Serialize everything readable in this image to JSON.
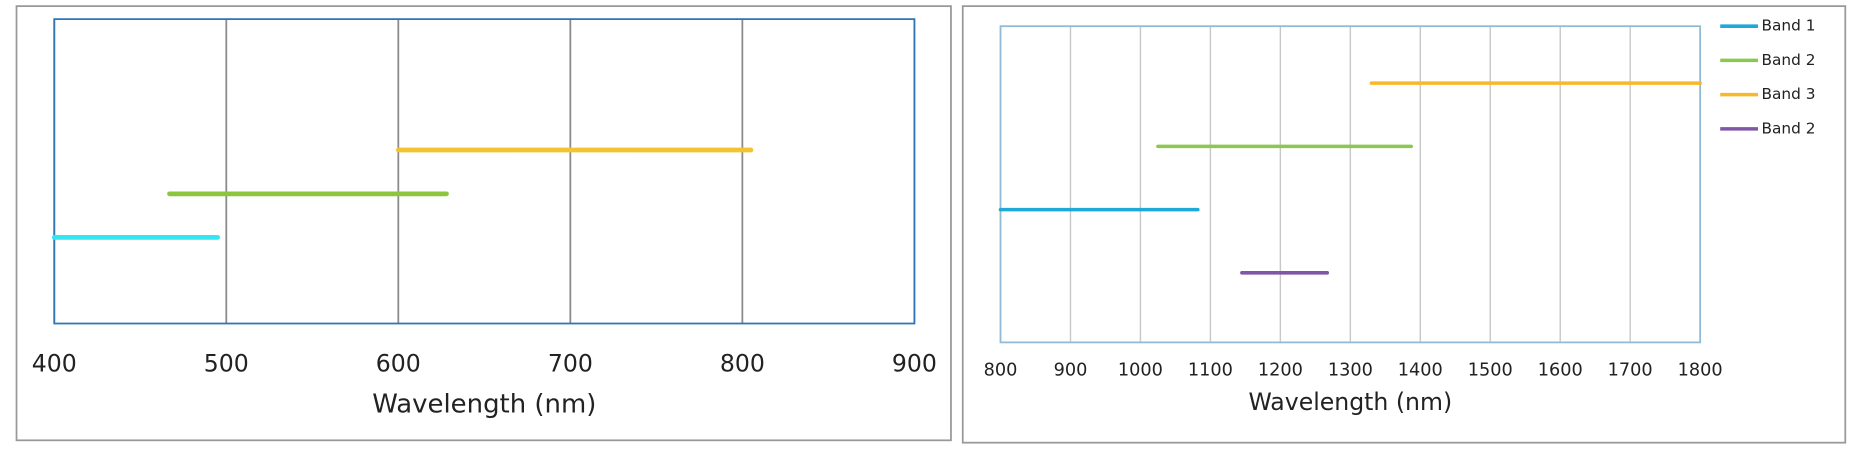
{
  "chart_data": [
    {
      "type": "range",
      "x_label": "Wavelength (nm)",
      "xlim": [
        400,
        900
      ],
      "xticks": [
        400,
        500,
        600,
        700,
        800,
        900
      ],
      "grid": true,
      "series": [
        {
          "color": "#33e6f2",
          "values": [
            400,
            495
          ]
        },
        {
          "color": "#8cc63f",
          "values": [
            467,
            628
          ]
        },
        {
          "color": "#f4c430",
          "values": [
            600,
            805
          ]
        }
      ]
    },
    {
      "type": "range",
      "x_label": "Wavelength (nm)",
      "xlim": [
        800,
        1800
      ],
      "xticks": [
        800,
        900,
        1000,
        1100,
        1200,
        1300,
        1400,
        1500,
        1600,
        1700,
        1800
      ],
      "grid": true,
      "legend": "right",
      "series": [
        {
          "name": "Band 1",
          "color": "#1fa8d8",
          "values": [
            800,
            1082
          ]
        },
        {
          "name": "Band 2",
          "color": "#8cc850",
          "values": [
            1025,
            1387
          ]
        },
        {
          "name": "Band 3",
          "color": "#f8b82a",
          "values": [
            1330,
            1800
          ]
        },
        {
          "name": "Band 2",
          "color": "#7e57a6",
          "values": [
            1145,
            1267
          ]
        }
      ]
    }
  ]
}
